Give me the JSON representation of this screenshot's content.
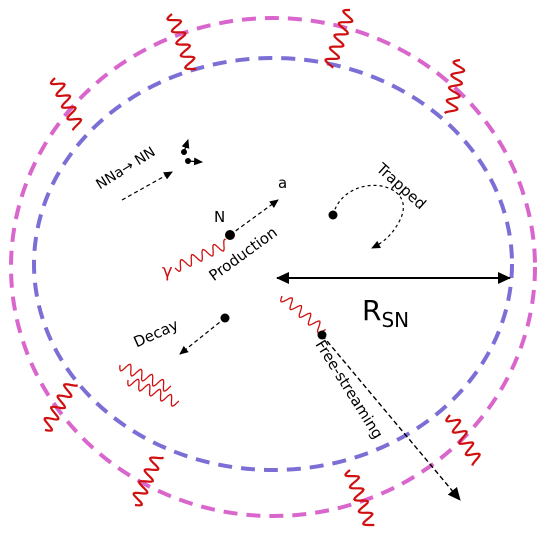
{
  "labels": {
    "absorption": "NNa→ NN",
    "nucleon": "N",
    "axion": "a",
    "photon": "γ",
    "production": "Production",
    "trapped": "Trapped",
    "decay": "Decay",
    "radius": "R",
    "radius_subscript": "SN",
    "free_streaming": "Free-streaming"
  }
}
